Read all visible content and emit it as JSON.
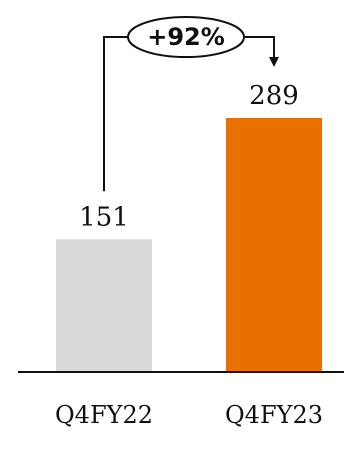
{
  "chart_data": {
    "type": "bar",
    "categories": [
      "Q4FY22",
      "Q4FY23"
    ],
    "values": [
      151,
      289
    ],
    "value_labels": [
      "151",
      "289"
    ],
    "colors": [
      "#d9d9d9",
      "#e87000"
    ],
    "growth_label": "+92%",
    "title": "",
    "xlabel": "",
    "ylabel": "",
    "ylim": [
      0,
      289
    ],
    "grid": false,
    "legend": "none"
  }
}
